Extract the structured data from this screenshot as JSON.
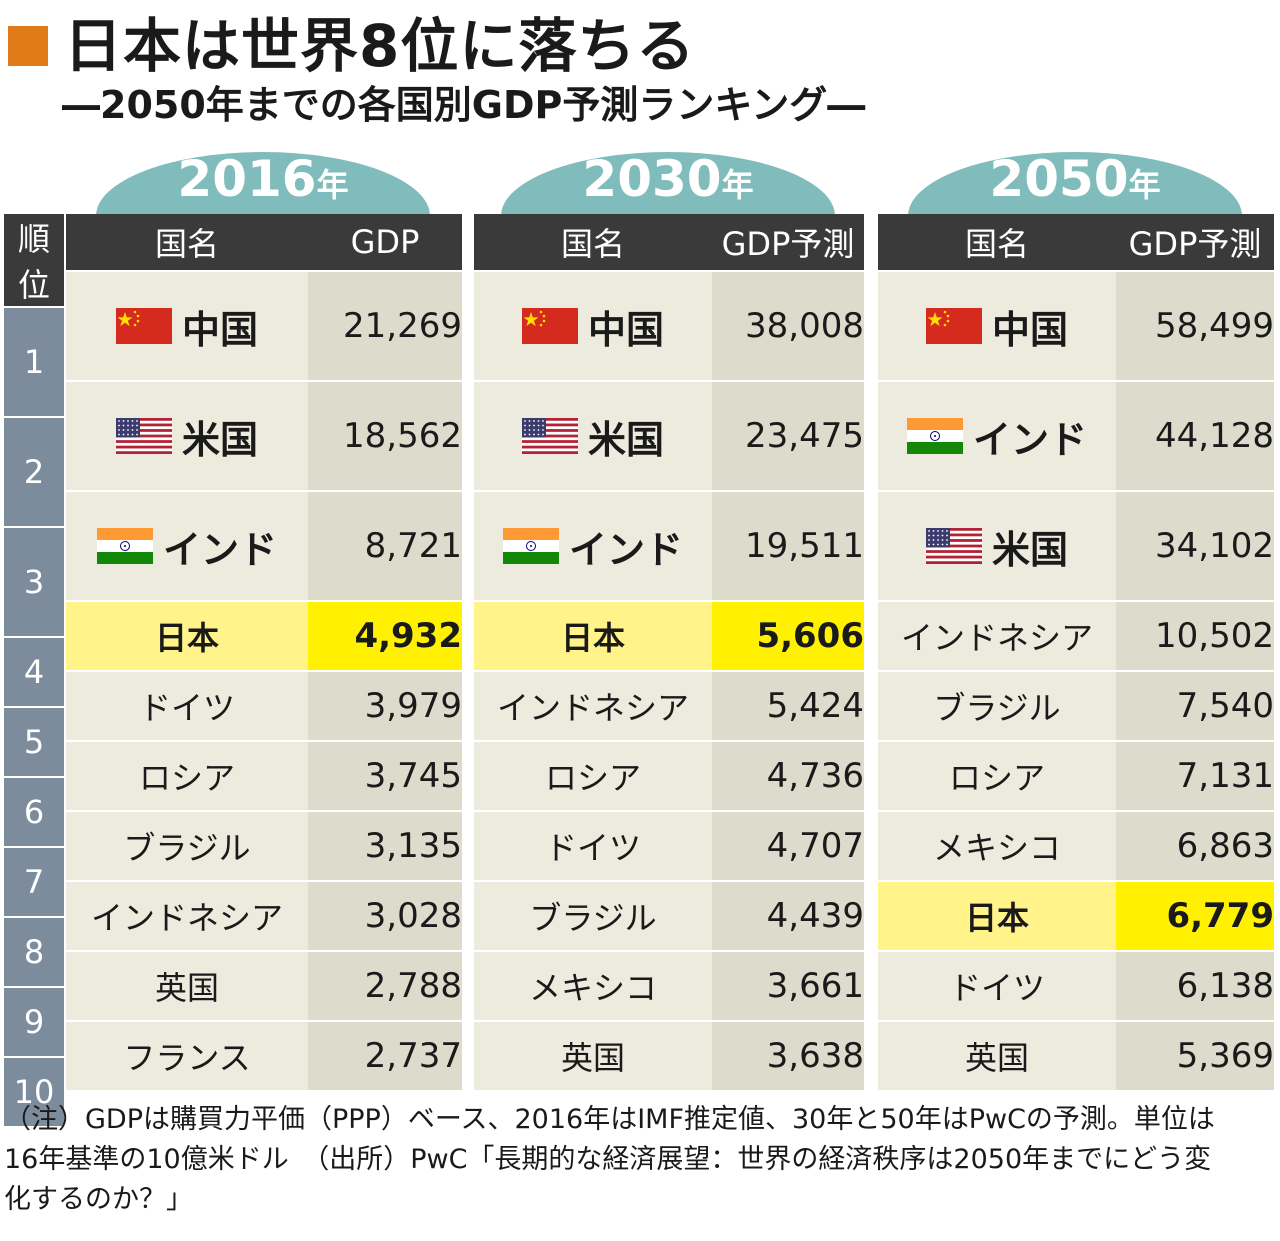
{
  "title": "日本は世界8位に落ちる",
  "subtitle": "―2050年までの各国別GDP予測ランキング―",
  "colors": {
    "accent": "#e07b1a",
    "header": "#3a3a3a",
    "rank": "#7c8c9c",
    "arch": "#7fbcbb",
    "highlight": "#fff100"
  },
  "rank_header": "順位",
  "chart_data": {
    "type": "table",
    "title": "2050年までの各国別GDP予測ランキング",
    "unit": "16年基準の10億米ドル",
    "panels": [
      {
        "year": "2016",
        "year_suffix": "年",
        "headers": [
          "国名",
          "GDP"
        ],
        "rows": [
          {
            "rank": "1",
            "country": "中国",
            "gdp": "21,269",
            "flag": "china",
            "value": 21269
          },
          {
            "rank": "2",
            "country": "米国",
            "gdp": "18,562",
            "flag": "usa",
            "value": 18562
          },
          {
            "rank": "3",
            "country": "インド",
            "gdp": "8,721",
            "flag": "india",
            "value": 8721
          },
          {
            "rank": "4",
            "country": "日本",
            "gdp": "4,932",
            "highlight": true,
            "value": 4932
          },
          {
            "rank": "5",
            "country": "ドイツ",
            "gdp": "3,979",
            "value": 3979
          },
          {
            "rank": "6",
            "country": "ロシア",
            "gdp": "3,745",
            "value": 3745
          },
          {
            "rank": "7",
            "country": "ブラジル",
            "gdp": "3,135",
            "value": 3135
          },
          {
            "rank": "8",
            "country": "インドネシア",
            "gdp": "3,028",
            "value": 3028
          },
          {
            "rank": "9",
            "country": "英国",
            "gdp": "2,788",
            "value": 2788
          },
          {
            "rank": "10",
            "country": "フランス",
            "gdp": "2,737",
            "value": 2737
          }
        ]
      },
      {
        "year": "2030",
        "year_suffix": "年",
        "headers": [
          "国名",
          "GDP予測"
        ],
        "rows": [
          {
            "rank": "1",
            "country": "中国",
            "gdp": "38,008",
            "flag": "china",
            "value": 38008
          },
          {
            "rank": "2",
            "country": "米国",
            "gdp": "23,475",
            "flag": "usa",
            "value": 23475
          },
          {
            "rank": "3",
            "country": "インド",
            "gdp": "19,511",
            "flag": "india",
            "value": 19511
          },
          {
            "rank": "4",
            "country": "日本",
            "gdp": "5,606",
            "highlight": true,
            "value": 5606
          },
          {
            "rank": "5",
            "country": "インドネシア",
            "gdp": "5,424",
            "value": 5424
          },
          {
            "rank": "6",
            "country": "ロシア",
            "gdp": "4,736",
            "value": 4736
          },
          {
            "rank": "7",
            "country": "ドイツ",
            "gdp": "4,707",
            "value": 4707
          },
          {
            "rank": "8",
            "country": "ブラジル",
            "gdp": "4,439",
            "value": 4439
          },
          {
            "rank": "9",
            "country": "メキシコ",
            "gdp": "3,661",
            "value": 3661
          },
          {
            "rank": "10",
            "country": "英国",
            "gdp": "3,638",
            "value": 3638
          }
        ]
      },
      {
        "year": "2050",
        "year_suffix": "年",
        "headers": [
          "国名",
          "GDP予測"
        ],
        "rows": [
          {
            "rank": "1",
            "country": "中国",
            "gdp": "58,499",
            "flag": "china",
            "value": 58499
          },
          {
            "rank": "2",
            "country": "インド",
            "gdp": "44,128",
            "flag": "india",
            "value": 44128
          },
          {
            "rank": "3",
            "country": "米国",
            "gdp": "34,102",
            "flag": "usa",
            "value": 34102
          },
          {
            "rank": "4",
            "country": "インドネシア",
            "gdp": "10,502",
            "value": 10502
          },
          {
            "rank": "5",
            "country": "ブラジル",
            "gdp": "7,540",
            "value": 7540
          },
          {
            "rank": "6",
            "country": "ロシア",
            "gdp": "7,131",
            "value": 7131
          },
          {
            "rank": "7",
            "country": "メキシコ",
            "gdp": "6,863",
            "value": 6863
          },
          {
            "rank": "8",
            "country": "日本",
            "gdp": "6,779",
            "highlight": true,
            "value": 6779
          },
          {
            "rank": "9",
            "country": "ドイツ",
            "gdp": "6,138",
            "value": 6138
          },
          {
            "rank": "10",
            "country": "英国",
            "gdp": "5,369",
            "value": 5369
          }
        ]
      }
    ]
  },
  "note_line1": "（注）GDPは購買力平価（PPP）ベース、2016年はIMF推定値、30年と50年はPwCの予測。単位は",
  "note_line2": "16年基準の10億米ドル　（出所）PwC「長期的な経済展望：世界の経済秩序は2050年までにどう変",
  "note_line3": "化するのか？」"
}
